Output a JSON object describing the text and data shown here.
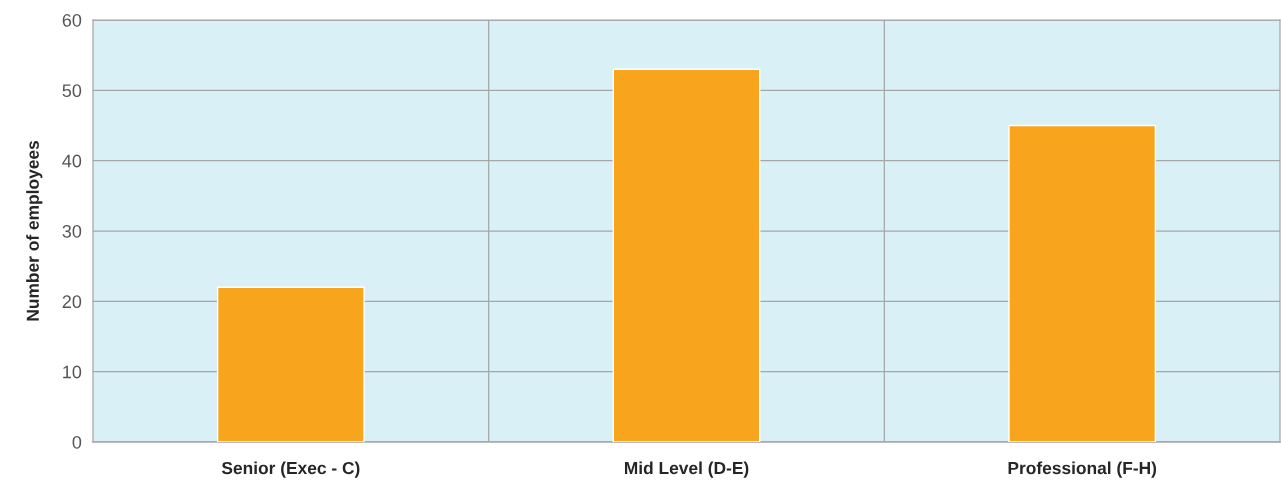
{
  "chart_data": {
    "type": "bar",
    "ylabel": "Number of employees",
    "categories": [
      "Senior (Exec - C)",
      "Mid Level (D-E)",
      "Professional (F-H)"
    ],
    "values": [
      22,
      53,
      45
    ],
    "color": "#f8a51d",
    "ylim": [
      0,
      60
    ],
    "yticks": [
      0,
      10,
      20,
      30,
      40,
      50,
      60
    ],
    "grid": true
  }
}
